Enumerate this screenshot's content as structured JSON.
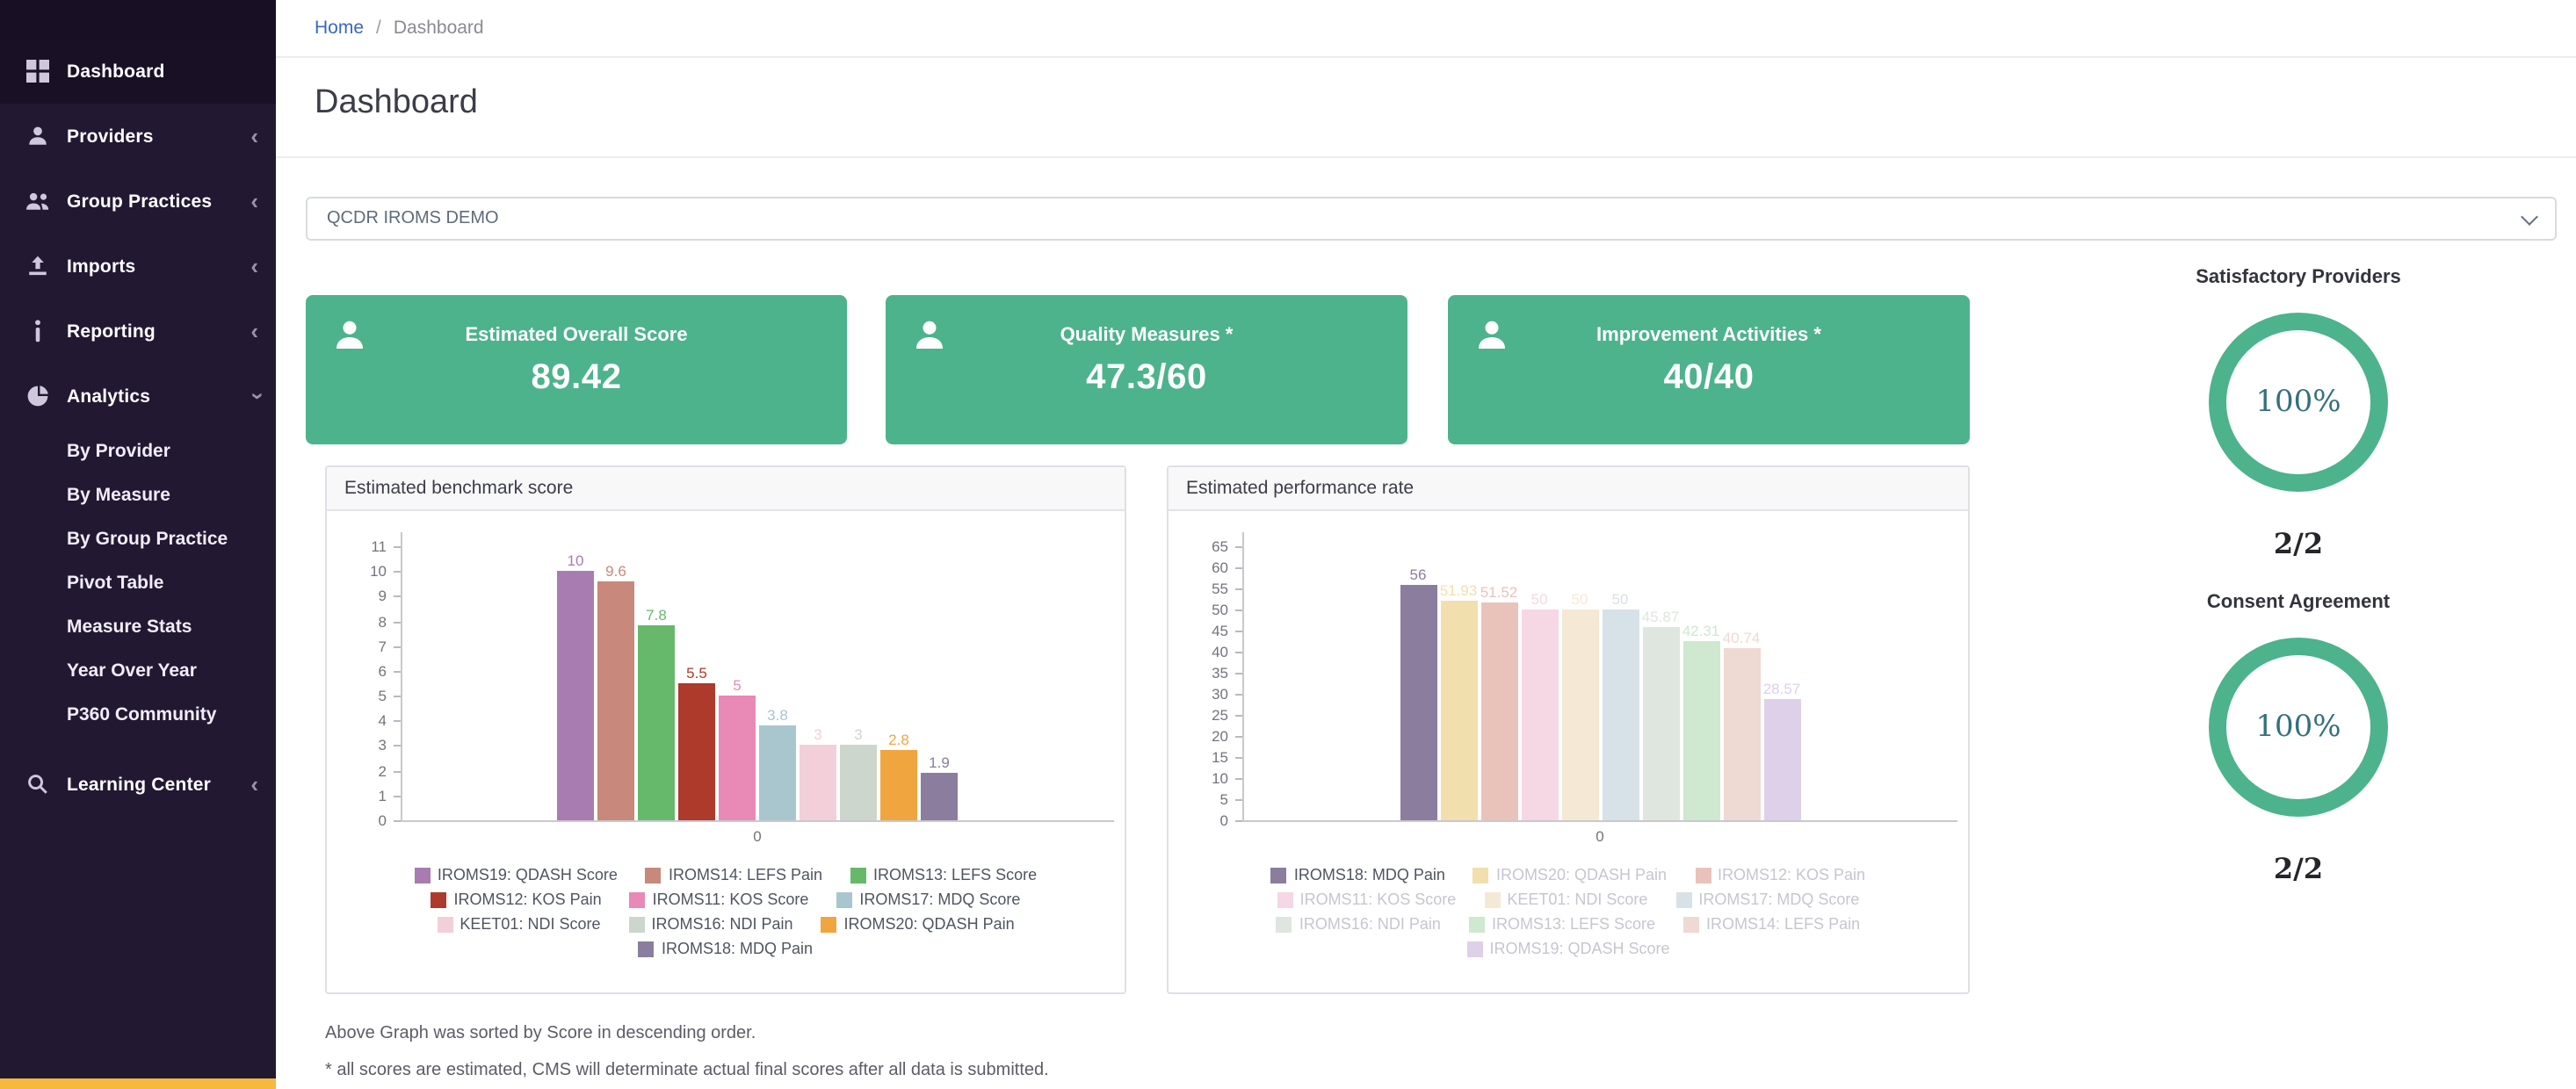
{
  "sidebar": {
    "items": [
      {
        "label": "Dashboard",
        "icon": "dashboard-grid-icon",
        "active": true
      },
      {
        "label": "Providers",
        "icon": "user-icon"
      },
      {
        "label": "Group Practices",
        "icon": "users-icon"
      },
      {
        "label": "Imports",
        "icon": "upload-icon"
      },
      {
        "label": "Reporting",
        "icon": "info-icon"
      },
      {
        "label": "Analytics",
        "icon": "pie-chart-icon",
        "expanded": true,
        "children": [
          "By Provider",
          "By Measure",
          "By Group Practice",
          "Pivot Table",
          "Measure Stats",
          "Year Over Year",
          "P360 Community"
        ]
      },
      {
        "label": "Learning Center",
        "icon": "search-icon"
      }
    ],
    "accent_color": "#f6b93d"
  },
  "breadcrumb": {
    "home": "Home",
    "separator": "/",
    "current": "Dashboard"
  },
  "page": {
    "title": "Dashboard"
  },
  "filter": {
    "selected": "QCDR IROMS DEMO"
  },
  "theme": {
    "accent_green": "#4db38c",
    "sidebar_bg": "#231832",
    "link_blue": "#3a66c4"
  },
  "stats": [
    {
      "title": "Estimated Overall Score",
      "value": "89.42",
      "icon": "person-icon"
    },
    {
      "title": "Quality Measures *",
      "value": "47.3/60",
      "icon": "person-icon"
    },
    {
      "title": "Improvement Activities *",
      "value": "40/40",
      "icon": "person-icon"
    }
  ],
  "gauges": [
    {
      "title": "Satisfactory Providers",
      "percent": "100%",
      "ratio": "2/2"
    },
    {
      "title": "Consent Agreement",
      "percent": "100%",
      "ratio": "2/2"
    }
  ],
  "notes": [
    "Above Graph was sorted by Score in descending order.",
    "* all scores are estimated, CMS will determinate actual final scores after all data is submitted."
  ],
  "chart_data": [
    {
      "type": "bar",
      "title": "Estimated benchmark score",
      "categories": [
        "IROMS19: QDASH Score",
        "IROMS14: LEFS Pain",
        "IROMS13: LEFS Score",
        "IROMS12: KOS Pain",
        "IROMS11: KOS Score",
        "IROMS17: MDQ Score",
        "KEET01: NDI Score",
        "IROMS16: NDI Pain",
        "IROMS20: QDASH Pain",
        "IROMS18: MDQ Pain"
      ],
      "values": [
        10,
        9.6,
        7.8,
        5.5,
        5,
        3.8,
        3,
        3,
        2.8,
        1.9
      ],
      "labels": [
        "10",
        "9.6",
        "7.8",
        "5.5",
        "5",
        "3.8",
        "3",
        "3",
        "2.8",
        "1.9"
      ],
      "colors": [
        "#a87cb1",
        "#c8887b",
        "#66b96a",
        "#ad3a2b",
        "#e989b6",
        "#a9c6ce",
        "#f3cfd9",
        "#ccd6cc",
        "#f0a53f",
        "#8a7d9e"
      ],
      "muted": [
        false,
        false,
        false,
        false,
        false,
        false,
        false,
        false,
        false,
        false
      ],
      "xlabel": "0",
      "ylabel": "",
      "ylim": [
        0,
        11
      ],
      "yticks": [
        0,
        1,
        2,
        3,
        4,
        5,
        6,
        7,
        8,
        9,
        10,
        11
      ],
      "legend_position": "bottom",
      "grid": false
    },
    {
      "type": "bar",
      "title": "Estimated performance rate",
      "categories": [
        "IROMS18: MDQ Pain",
        "IROMS20: QDASH Pain",
        "IROMS12: KOS Pain",
        "IROMS11: KOS Score",
        "KEET01: NDI Score",
        "IROMS17: MDQ Score",
        "IROMS16: NDI Pain",
        "IROMS13: LEFS Score",
        "IROMS14: LEFS Pain",
        "IROMS19: QDASH Score"
      ],
      "values": [
        56,
        51.93,
        51.52,
        50,
        50,
        50,
        45.87,
        42.31,
        40.74,
        28.57
      ],
      "labels": [
        "56",
        "51.93",
        "51.52",
        "50",
        "50",
        "50",
        "45.87",
        "42.31",
        "40.74",
        "28.57"
      ],
      "colors": [
        "#8a7d9e",
        "#f2dfae",
        "#e9c3ba",
        "#f6d7e4",
        "#f5e9d6",
        "#d6e2e7",
        "#dfe6df",
        "#cfe8d0",
        "#eed9d3",
        "#ded0e8"
      ],
      "muted": [
        false,
        true,
        true,
        true,
        true,
        true,
        true,
        true,
        true,
        true
      ],
      "xlabel": "0",
      "ylabel": "",
      "ylim": [
        0,
        65
      ],
      "yticks": [
        0,
        5,
        10,
        15,
        20,
        25,
        30,
        35,
        40,
        45,
        50,
        55,
        60,
        65
      ],
      "legend_position": "bottom",
      "grid": false
    }
  ]
}
